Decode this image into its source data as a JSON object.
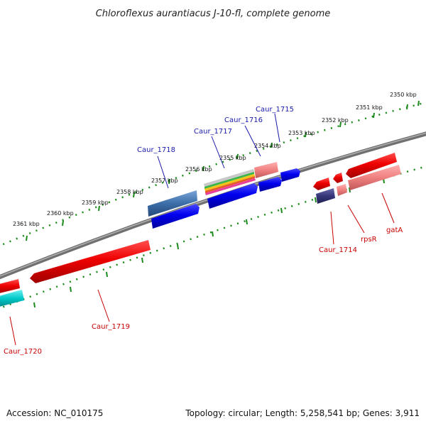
{
  "title": "Chloroflexus aurantiacus J-10-fl, complete genome",
  "footer": {
    "accession": "Accession: NC_010175",
    "summary": "Topology: circular; Length: 5,258,541 bp; Genes: 3,911"
  },
  "ticks": [
    "2350 kbp",
    "2351 kbp",
    "2352 kbp",
    "2353 kbp",
    "2354 kbp",
    "2355 kbp",
    "2356 kbp",
    "2357 kbp",
    "2358 kbp",
    "2359 kbp",
    "2360 kbp",
    "2361 kbp"
  ],
  "genes": {
    "caur_1715": "Caur_1715",
    "caur_1716": "Caur_1716",
    "caur_1717": "Caur_1717",
    "caur_1718": "Caur_1718",
    "caur_1714": "Caur_1714",
    "rpsr": "rpsR",
    "gata": "gatA",
    "caur_1719": "Caur_1719",
    "caur_1720": "Caur_1720"
  },
  "colors": {
    "forward": "#0000ee",
    "reverse": "#ee0000",
    "backbone": "#808080",
    "ticks": "#1a8a1a",
    "label_blue": "#1a1aaa",
    "label_red": "#c80000"
  }
}
